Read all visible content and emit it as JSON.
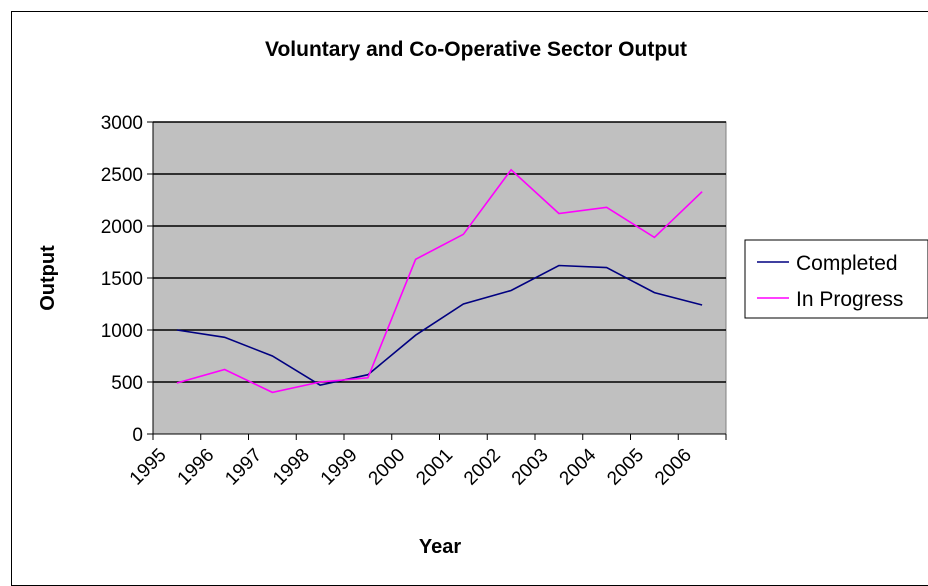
{
  "chart_data": {
    "type": "line",
    "title": "Voluntary and Co-Operative Sector Output",
    "xlabel": "Year",
    "ylabel": "Output",
    "ylim": [
      0,
      3000
    ],
    "y_ticks": [
      "0",
      "500",
      "1000",
      "1500",
      "2000",
      "2500",
      "3000"
    ],
    "categories": [
      "1995",
      "1996",
      "1997",
      "1998",
      "1999",
      "2000",
      "2001",
      "2002",
      "2003",
      "2004",
      "2005",
      "2006"
    ],
    "grid": true,
    "legend_position": "right",
    "plot_background": "#c0c0c0",
    "series": [
      {
        "name": "Completed",
        "color": "#000080",
        "values": [
          1000,
          930,
          750,
          470,
          570,
          950,
          1250,
          1380,
          1620,
          1600,
          1360,
          1240
        ]
      },
      {
        "name": "In Progress",
        "color": "#ff00ff",
        "values": [
          490,
          620,
          400,
          500,
          540,
          1680,
          1920,
          2540,
          2120,
          2180,
          1890,
          2330
        ]
      }
    ]
  }
}
